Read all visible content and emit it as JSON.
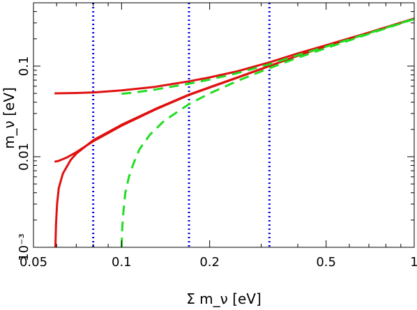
{
  "chart_data": {
    "type": "line",
    "x_scale": "log",
    "y_scale": "log",
    "xlim": [
      0.05,
      1
    ],
    "ylim": [
      0.001,
      0.5
    ],
    "x_ticks": [
      {
        "value": 0.05,
        "label": "0.05"
      },
      {
        "value": 0.1,
        "label": "0.1"
      },
      {
        "value": 0.2,
        "label": "0.2"
      },
      {
        "value": 0.5,
        "label": "0.5"
      },
      {
        "value": 1,
        "label": "1"
      }
    ],
    "y_ticks": [
      {
        "value": 0.001,
        "label": "10⁻³"
      },
      {
        "value": 0.01,
        "label": "0.01"
      },
      {
        "value": 0.1,
        "label": "0.1"
      }
    ],
    "xlabel": "Σ m_ν [eV]",
    "ylabel": "m_ν [eV]",
    "vertical_lines": [
      {
        "x": 0.08,
        "color": "#0000dd",
        "style": "dotted"
      },
      {
        "x": 0.17,
        "color": "#0000dd",
        "style": "dotted"
      },
      {
        "x": 0.32,
        "color": "#0000dd",
        "style": "dotted"
      }
    ],
    "series": [
      {
        "color": "#e01010",
        "style": "solid",
        "points": [
          [
            0.059,
            0.05
          ],
          [
            0.07,
            0.0505
          ],
          [
            0.08,
            0.0512
          ],
          [
            0.1,
            0.054
          ],
          [
            0.13,
            0.059
          ],
          [
            0.17,
            0.068
          ],
          [
            0.2,
            0.075
          ],
          [
            0.25,
            0.088
          ],
          [
            0.32,
            0.11
          ],
          [
            0.4,
            0.138
          ],
          [
            0.5,
            0.17
          ],
          [
            0.7,
            0.235
          ],
          [
            1.0,
            0.335
          ]
        ]
      },
      {
        "color": "#e01010",
        "style": "solid",
        "points": [
          [
            0.059,
            0.0088
          ],
          [
            0.061,
            0.009
          ],
          [
            0.065,
            0.0098
          ],
          [
            0.07,
            0.0112
          ],
          [
            0.08,
            0.0148
          ],
          [
            0.1,
            0.022
          ],
          [
            0.13,
            0.033
          ],
          [
            0.17,
            0.048
          ],
          [
            0.2,
            0.058
          ],
          [
            0.25,
            0.075
          ],
          [
            0.32,
            0.1
          ],
          [
            0.4,
            0.13
          ],
          [
            0.5,
            0.165
          ],
          [
            0.7,
            0.233
          ],
          [
            1.0,
            0.333
          ]
        ]
      },
      {
        "color": "#e01010",
        "style": "solid",
        "points": [
          [
            0.0594,
            0.001
          ],
          [
            0.0597,
            0.0018
          ],
          [
            0.0602,
            0.003
          ],
          [
            0.061,
            0.0045
          ],
          [
            0.063,
            0.0065
          ],
          [
            0.067,
            0.0092
          ],
          [
            0.07,
            0.0108
          ],
          [
            0.08,
            0.0152
          ],
          [
            0.1,
            0.0225
          ],
          [
            0.13,
            0.0335
          ],
          [
            0.17,
            0.0485
          ],
          [
            0.2,
            0.0585
          ],
          [
            0.25,
            0.0755
          ],
          [
            0.32,
            0.1005
          ],
          [
            0.4,
            0.1305
          ],
          [
            0.5,
            0.1655
          ],
          [
            0.7,
            0.2335
          ],
          [
            1.0,
            0.3335
          ]
        ]
      },
      {
        "color": "#22dd22",
        "style": "dashed",
        "points": [
          [
            0.1,
            0.0495
          ],
          [
            0.11,
            0.051
          ],
          [
            0.13,
            0.055
          ],
          [
            0.17,
            0.064
          ],
          [
            0.2,
            0.071
          ],
          [
            0.25,
            0.084
          ],
          [
            0.32,
            0.105
          ],
          [
            0.4,
            0.132
          ],
          [
            0.5,
            0.164
          ],
          [
            0.7,
            0.231
          ],
          [
            1.0,
            0.332
          ]
        ]
      },
      {
        "color": "#22dd22",
        "style": "dashed",
        "points": [
          [
            0.1,
            0.001
          ],
          [
            0.1005,
            0.0016
          ],
          [
            0.1015,
            0.0025
          ],
          [
            0.103,
            0.004
          ],
          [
            0.106,
            0.006
          ],
          [
            0.11,
            0.0085
          ],
          [
            0.115,
            0.012
          ],
          [
            0.125,
            0.0175
          ],
          [
            0.14,
            0.025
          ],
          [
            0.17,
            0.038
          ],
          [
            0.2,
            0.05
          ],
          [
            0.25,
            0.069
          ],
          [
            0.32,
            0.095
          ],
          [
            0.4,
            0.124
          ],
          [
            0.5,
            0.158
          ],
          [
            0.7,
            0.227
          ],
          [
            1.0,
            0.33
          ]
        ]
      }
    ]
  }
}
